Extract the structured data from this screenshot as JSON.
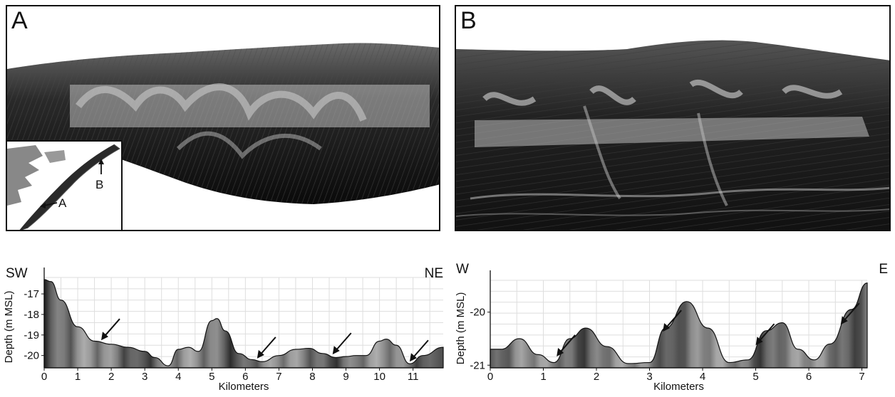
{
  "panels": {
    "a": {
      "letter": "A"
    },
    "b": {
      "letter": "B"
    }
  },
  "inset": {
    "label_a": "A",
    "label_b": "B"
  },
  "chart_data": [
    {
      "type": "area",
      "title": "",
      "direction_left": "SW",
      "direction_right": "NE",
      "xlabel": "Kilometers",
      "ylabel": "Depth (m MSL)",
      "xlim": [
        0,
        11.9
      ],
      "ylim": [
        -20.6,
        -16.2
      ],
      "xticks": [
        0,
        1,
        2,
        3,
        4,
        5,
        6,
        7,
        8,
        9,
        10,
        11
      ],
      "yticks": [
        -17,
        -18,
        -19,
        -20
      ],
      "grid": true,
      "x": [
        0,
        0.2,
        0.5,
        1.0,
        1.5,
        2.0,
        2.5,
        3.0,
        3.3,
        3.7,
        4.0,
        4.3,
        4.6,
        5.0,
        5.15,
        5.4,
        5.8,
        6.2,
        6.5,
        7.0,
        7.5,
        7.9,
        8.3,
        8.7,
        9.0,
        9.3,
        9.6,
        10.0,
        10.2,
        10.5,
        10.9,
        11.3,
        11.9
      ],
      "y": [
        -16.3,
        -16.4,
        -17.3,
        -18.6,
        -19.3,
        -19.45,
        -19.6,
        -19.8,
        -20.1,
        -20.5,
        -19.7,
        -19.6,
        -19.8,
        -18.3,
        -18.2,
        -18.8,
        -19.9,
        -20.2,
        -20.3,
        -20.0,
        -19.7,
        -19.65,
        -19.9,
        -20.1,
        -20.05,
        -20.0,
        -20.0,
        -19.3,
        -19.2,
        -19.5,
        -20.4,
        -20.0,
        -19.6
      ],
      "arrows_at_km": [
        1.7,
        6.35,
        8.6,
        10.9
      ]
    },
    {
      "type": "area",
      "title": "",
      "direction_left": "W",
      "direction_right": "E",
      "xlabel": "Kilometers",
      "ylabel": "Depth (m MSL)",
      "xlim": [
        0,
        7.1
      ],
      "ylim": [
        -21.05,
        -19.4
      ],
      "xticks": [
        0,
        1,
        2,
        3,
        4,
        5,
        6,
        7
      ],
      "yticks": [
        -20,
        -21
      ],
      "grid": true,
      "x": [
        0,
        0.2,
        0.55,
        0.9,
        1.2,
        1.5,
        1.8,
        2.2,
        2.6,
        3.0,
        3.3,
        3.7,
        4.1,
        4.5,
        4.85,
        5.2,
        5.5,
        5.8,
        6.1,
        6.4,
        6.8,
        7.1
      ],
      "y": [
        -20.7,
        -20.7,
        -20.5,
        -20.8,
        -20.95,
        -20.5,
        -20.3,
        -20.65,
        -20.97,
        -20.95,
        -20.3,
        -19.8,
        -20.3,
        -20.95,
        -20.9,
        -20.35,
        -20.2,
        -20.7,
        -20.9,
        -20.6,
        -19.95,
        -19.45
      ],
      "arrows_at_km": [
        1.25,
        3.25,
        5.0,
        6.6
      ]
    }
  ]
}
